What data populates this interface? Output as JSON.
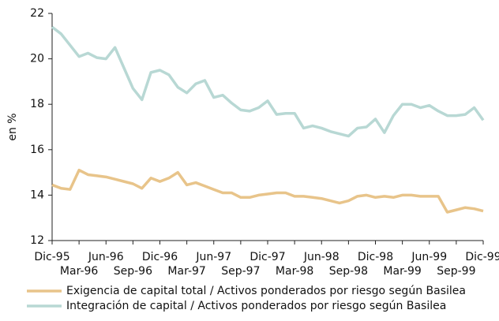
{
  "chart_data": {
    "type": "line",
    "y_label": "en %",
    "categories": [
      "Dic-95",
      null,
      null,
      "Mar-96",
      null,
      null,
      "Jun-96",
      null,
      null,
      "Sep-96",
      null,
      null,
      "Dic-96",
      null,
      null,
      "Mar-97",
      null,
      null,
      "Jun-97",
      null,
      null,
      "Sep-97",
      null,
      null,
      "Dic-97",
      null,
      null,
      "Mar-98",
      null,
      null,
      "Jun-98",
      null,
      null,
      "Sep-98",
      null,
      null,
      "Dic-98",
      null,
      null,
      "Mar-99",
      null,
      null,
      "Jun-99",
      null,
      null,
      "Sep-99",
      null,
      null,
      "Dic-99"
    ],
    "series": [
      {
        "name": "Exigencia de capital total / Activos ponderados por riesgo según Basilea",
        "color": "#e8c48a",
        "values": [
          14.45,
          14.3,
          14.25,
          15.1,
          14.9,
          14.85,
          14.8,
          14.7,
          14.6,
          14.5,
          14.3,
          14.75,
          14.6,
          14.75,
          15.0,
          14.45,
          14.55,
          14.4,
          14.25,
          14.1,
          14.1,
          13.9,
          13.9,
          14.0,
          14.05,
          14.1,
          14.1,
          13.95,
          13.95,
          13.9,
          13.85,
          13.75,
          13.65,
          13.75,
          13.95,
          14.0,
          13.9,
          13.95,
          13.9,
          14.0,
          14.0,
          13.95,
          13.95,
          13.95,
          13.25,
          13.35,
          13.45,
          13.4,
          13.3
        ]
      },
      {
        "name": "Integración de capital / Activos ponderados por riesgo según Basilea",
        "color": "#b8d8d4",
        "values": [
          21.4,
          21.1,
          20.6,
          20.1,
          20.25,
          20.05,
          20.0,
          20.5,
          19.6,
          18.7,
          18.2,
          19.4,
          19.5,
          19.3,
          18.75,
          18.5,
          18.9,
          19.05,
          18.3,
          18.4,
          18.05,
          17.75,
          17.7,
          17.85,
          18.15,
          17.55,
          17.6,
          17.6,
          16.95,
          17.05,
          16.95,
          16.8,
          16.7,
          16.6,
          16.95,
          17.0,
          17.35,
          16.75,
          17.5,
          18.0,
          18.0,
          17.85,
          17.95,
          17.7,
          17.5,
          17.5,
          17.55,
          17.85,
          17.3
        ]
      }
    ],
    "ylim": [
      12,
      22
    ],
    "yticks": [
      12,
      14,
      16,
      18,
      20,
      22
    ],
    "grid": false
  }
}
